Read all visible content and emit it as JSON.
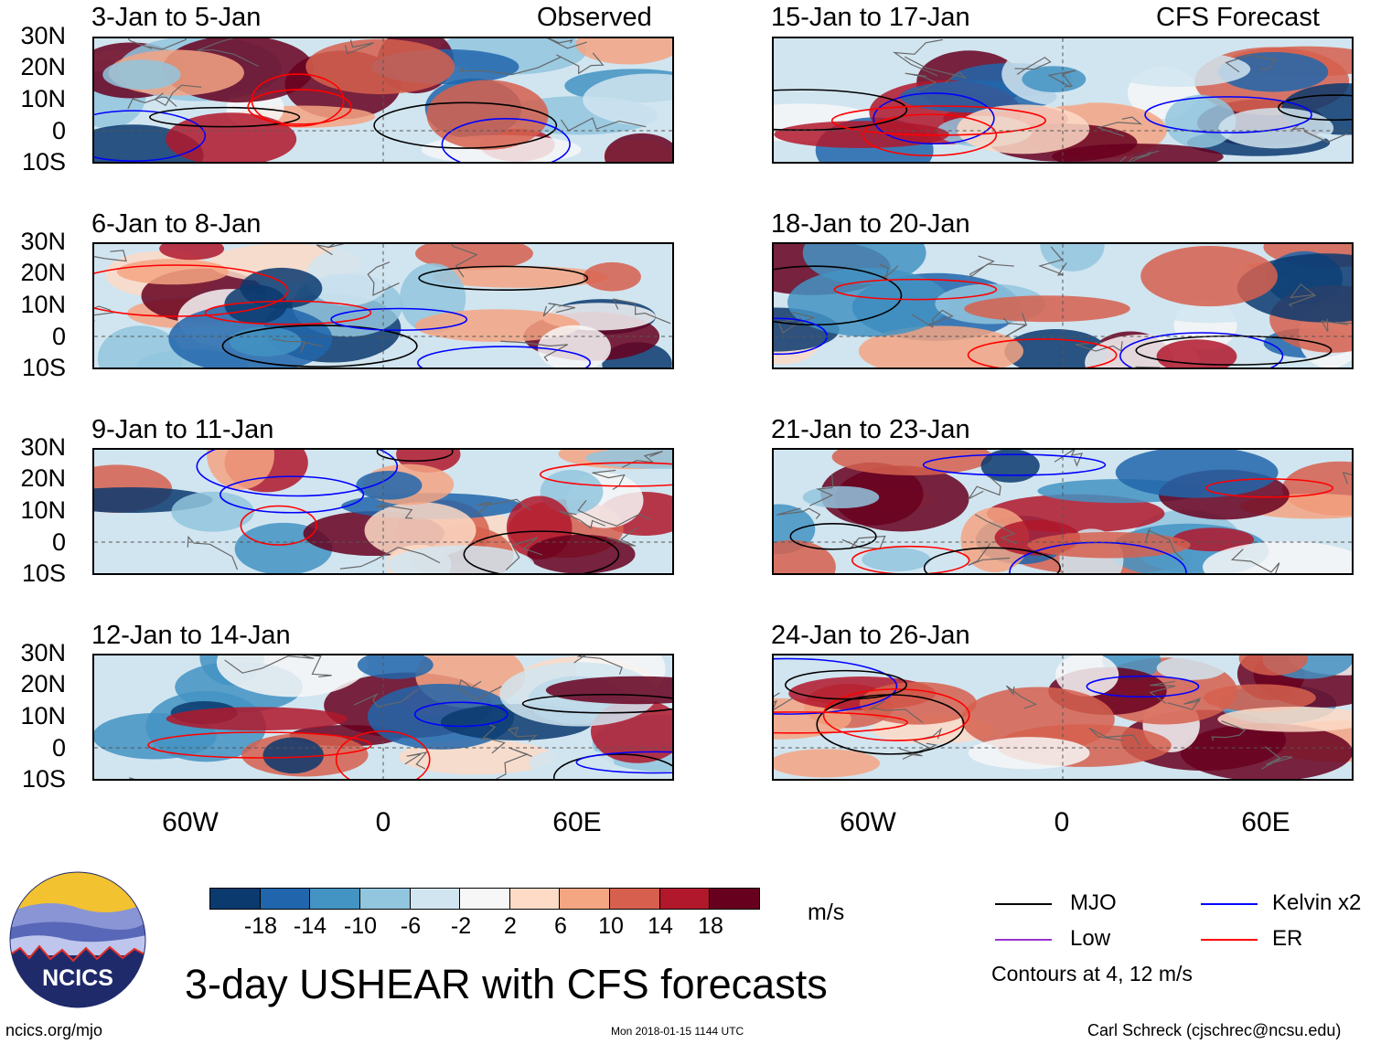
{
  "headers": {
    "observed": "Observed",
    "forecast": "CFS Forecast"
  },
  "latitude_labels": [
    "30N",
    "20N",
    "10N",
    "0",
    "10S"
  ],
  "longitude_labels": [
    "60W",
    "0",
    "60E"
  ],
  "panels": [
    {
      "title": "3-Jan to 5-Jan",
      "seed": 3
    },
    {
      "title": "6-Jan to 8-Jan",
      "seed": 7
    },
    {
      "title": "9-Jan to 11-Jan",
      "seed": 11
    },
    {
      "title": "12-Jan to 14-Jan",
      "seed": 19
    },
    {
      "title": "15-Jan to 17-Jan",
      "seed": 23
    },
    {
      "title": "18-Jan to 20-Jan",
      "seed": 29
    },
    {
      "title": "21-Jan to 23-Jan",
      "seed": 31
    },
    {
      "title": "24-Jan to 26-Jan",
      "seed": 37
    }
  ],
  "colorbar": {
    "colors": [
      "#0b3a6e",
      "#2166ac",
      "#4393c3",
      "#92c5de",
      "#d1e5f0",
      "#f7f7f7",
      "#fddbc7",
      "#f4a582",
      "#d6604d",
      "#b2182b",
      "#67001f"
    ],
    "labels": [
      "-18",
      "-14",
      "-10",
      "-6",
      "-2",
      "2",
      "6",
      "10",
      "14",
      "18"
    ],
    "unit": "m/s"
  },
  "legend": {
    "items": [
      {
        "label": "MJO",
        "color": "#000000"
      },
      {
        "label": "Kelvin x2",
        "color": "#0000ff"
      },
      {
        "label": "Low",
        "color": "#9932cc"
      },
      {
        "label": "ER",
        "color": "#ff0000"
      }
    ],
    "contours_note": "Contours at 4, 12 m/s"
  },
  "logo": {
    "text": "NCICS"
  },
  "title": "3-day USHEAR with CFS forecasts",
  "footer": {
    "left": "ncics.org/mjo",
    "center": "Mon 2018-01-15 1144 UTC",
    "right": "Carl Schreck (cjschrec@ncsu.edu)"
  }
}
